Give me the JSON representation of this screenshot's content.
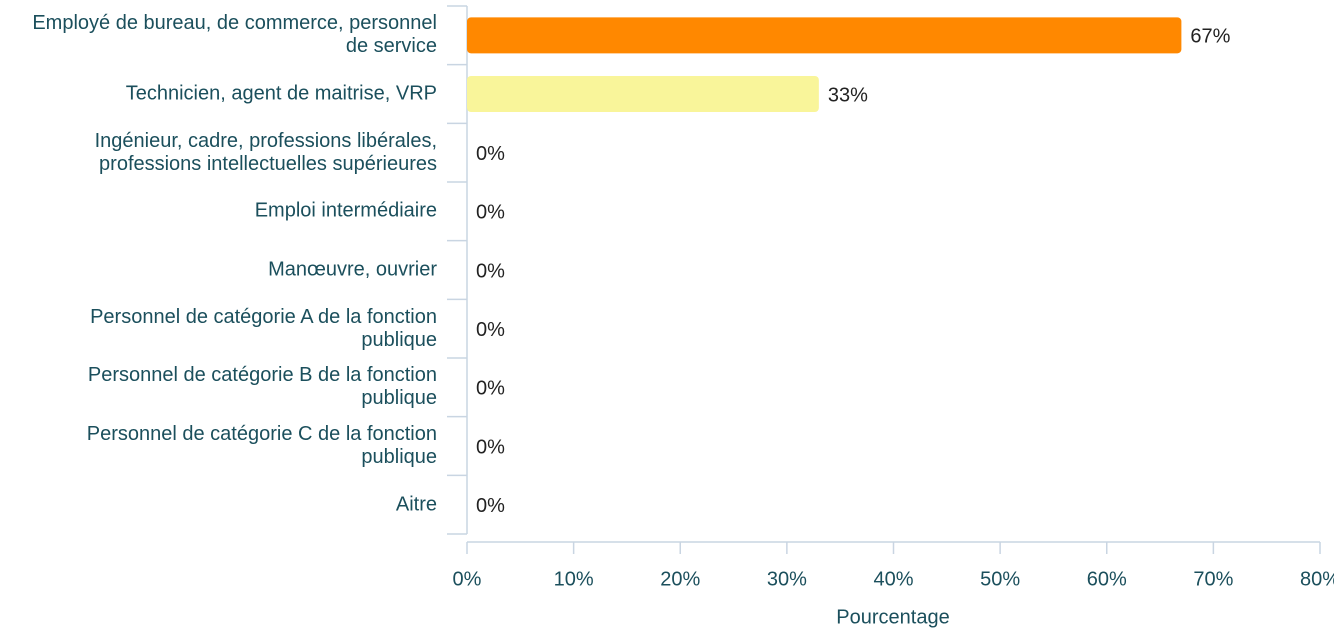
{
  "chart_data": {
    "type": "barh",
    "categories": [
      "Employé de bureau, de commerce, personnel de service",
      "Technicien, agent de maitrise, VRP",
      "Ingénieur, cadre, professions libérales, professions intellectuelles supérieures",
      "Emploi intermédiaire",
      "Manœuvre, ouvrier",
      "Personnel de catégorie A de la fonction publique",
      "Personnel de catégorie B de la fonction publique",
      "Personnel de catégorie C de la fonction publique",
      "Aitre"
    ],
    "values": [
      67,
      33,
      0,
      0,
      0,
      0,
      0,
      0,
      0
    ],
    "value_labels": [
      "67%",
      "33%",
      "0%",
      "0%",
      "0%",
      "0%",
      "0%",
      "0%",
      "0%"
    ],
    "colors": [
      "#ff8800",
      "#f9f59a"
    ],
    "xlim": [
      0,
      80
    ],
    "xticks": [
      {
        "value": 0,
        "label": "0%"
      },
      {
        "value": 10,
        "label": "10%"
      },
      {
        "value": 20,
        "label": "20%"
      },
      {
        "value": 30,
        "label": "30%"
      },
      {
        "value": 40,
        "label": "40%"
      },
      {
        "value": 50,
        "label": "50%"
      },
      {
        "value": 60,
        "label": "60%"
      },
      {
        "value": 70,
        "label": "70%"
      },
      {
        "value": 80,
        "label": "80%"
      }
    ],
    "x_label": "Pourcentage"
  }
}
